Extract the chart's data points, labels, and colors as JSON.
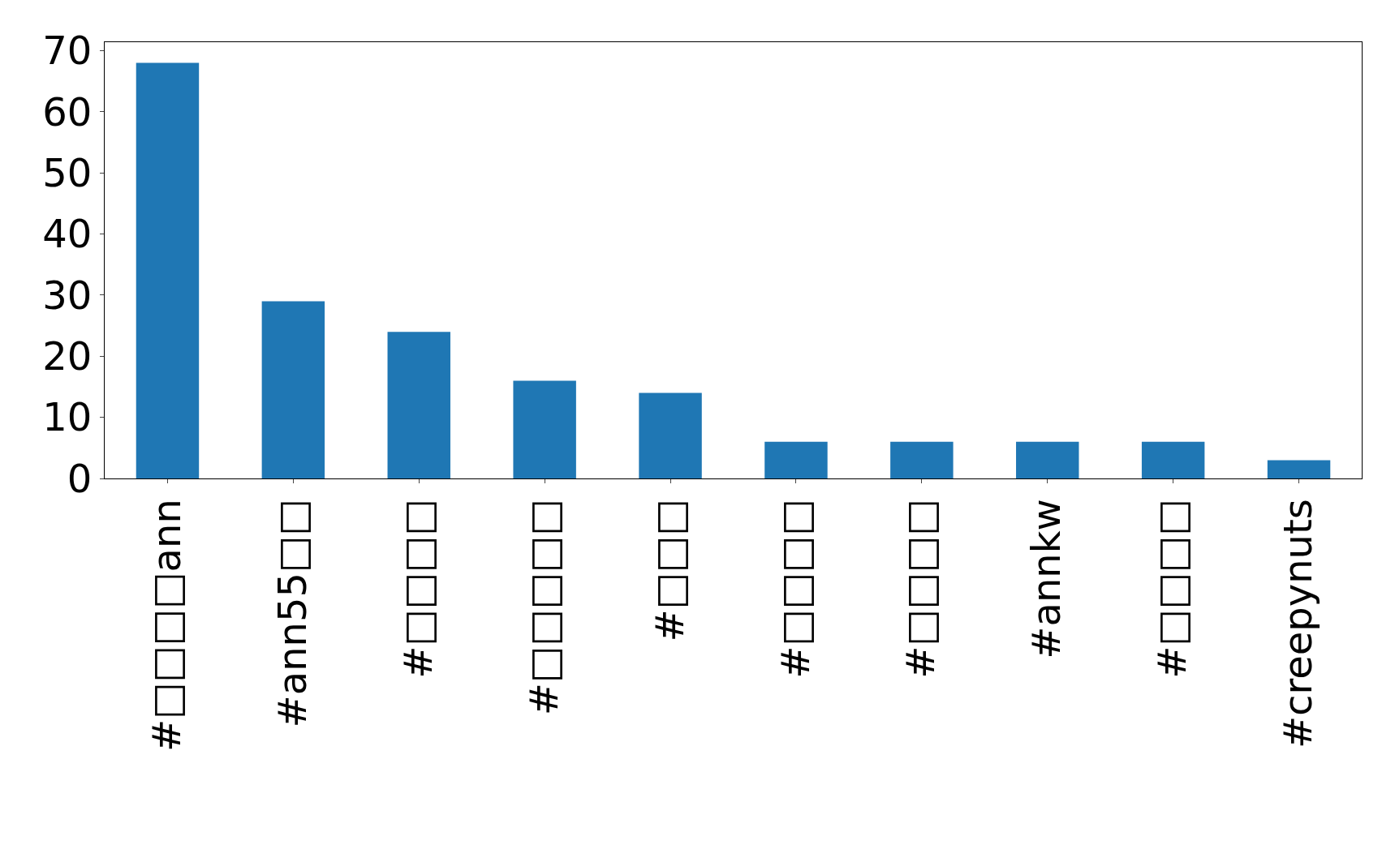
{
  "chart_data": {
    "type": "bar",
    "categories": [
      "#□□□□ann",
      "#ann55□□",
      "#□□□□",
      "#□□□□□",
      "#□□□",
      "#□□□□",
      "#□□□□",
      "#annkw",
      "#□□□□",
      "#creepynuts"
    ],
    "values": [
      68,
      29,
      24,
      16,
      14,
      6,
      6,
      6,
      6,
      3
    ],
    "color": "#1f77b4",
    "ylim": [
      0,
      71.4
    ],
    "yticks": [
      0,
      10,
      20,
      30,
      40,
      50,
      60,
      70
    ]
  }
}
